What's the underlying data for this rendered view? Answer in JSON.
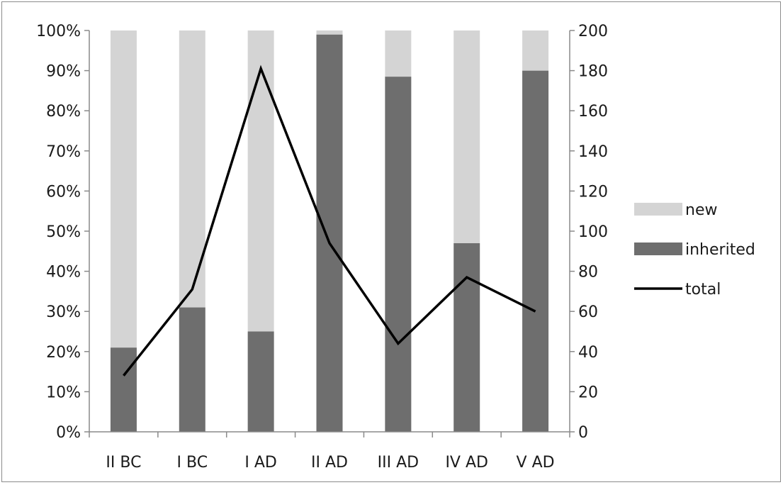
{
  "chart_data": {
    "type": "bar",
    "stacked": true,
    "percent_stacked": true,
    "categories": [
      "II BC",
      "I BC",
      "I AD",
      "II AD",
      "III AD",
      "IV AD",
      "V AD"
    ],
    "series": [
      {
        "name": "inherited",
        "type": "bar",
        "axis": "left",
        "color": "#6e6e6e",
        "values": [
          21,
          31,
          25,
          99,
          88.5,
          47,
          90
        ]
      },
      {
        "name": "new",
        "type": "bar",
        "axis": "left",
        "color": "#d4d4d4",
        "values": [
          79,
          69,
          75,
          1,
          11.5,
          53,
          10
        ]
      },
      {
        "name": "total",
        "type": "line",
        "axis": "right",
        "color": "#000000",
        "values": [
          28,
          71,
          181,
          94,
          44,
          77,
          60
        ]
      }
    ],
    "y_left": {
      "ylim": [
        0,
        100
      ],
      "ticks": [
        "0%",
        "10%",
        "20%",
        "30%",
        "40%",
        "50%",
        "60%",
        "70%",
        "80%",
        "90%",
        "100%"
      ]
    },
    "y_right": {
      "ylim": [
        0,
        200
      ],
      "ticks": [
        "0",
        "20",
        "40",
        "60",
        "80",
        "100",
        "120",
        "140",
        "160",
        "180",
        "200"
      ]
    },
    "legend": {
      "position": "right",
      "entries": [
        "new",
        "inherited",
        "total"
      ]
    },
    "grid": false
  }
}
